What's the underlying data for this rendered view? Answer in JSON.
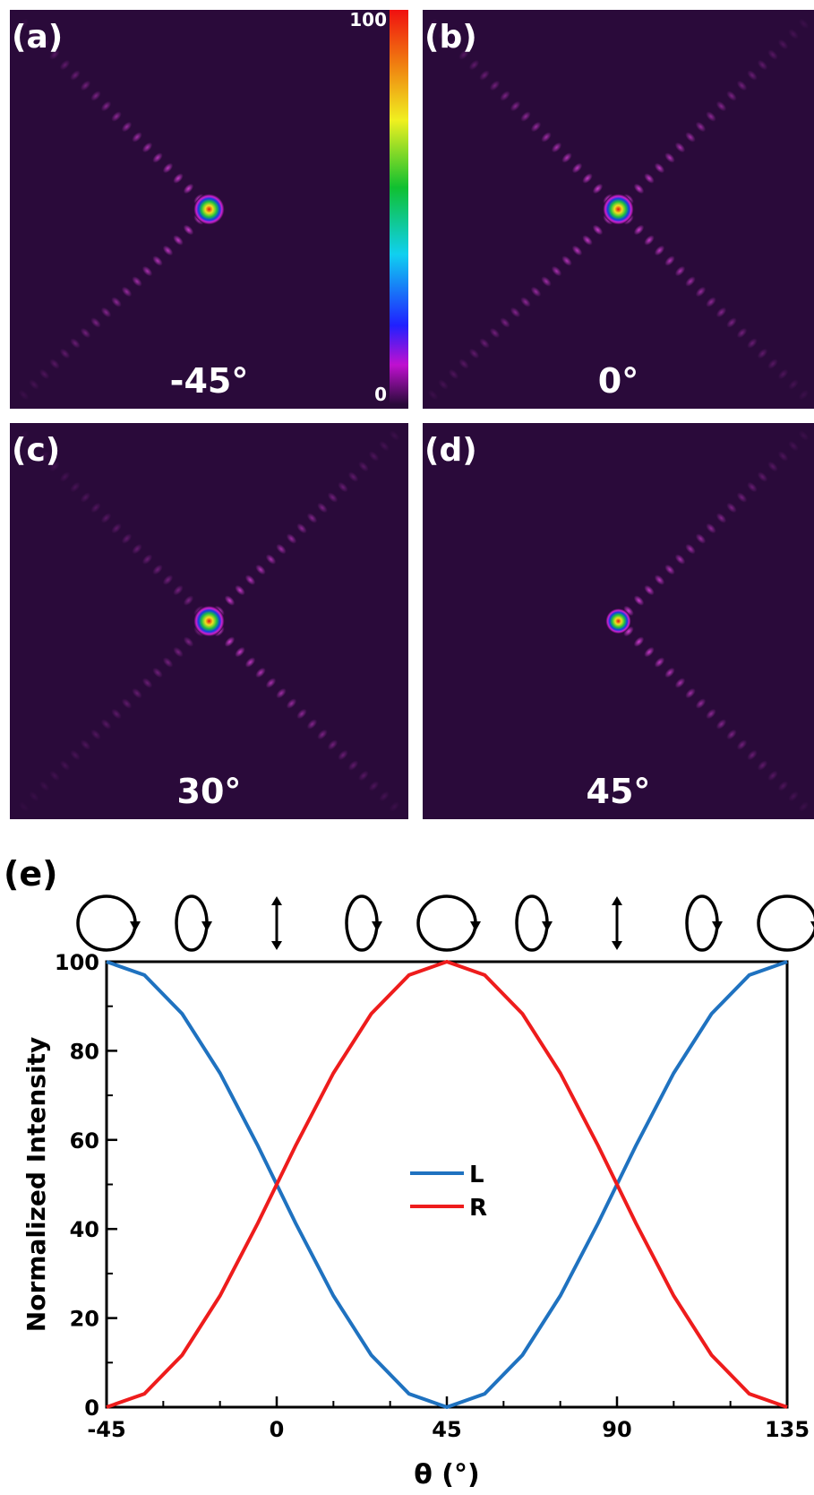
{
  "panels": [
    {
      "label": "(a)",
      "angle": "-45°"
    },
    {
      "label": "(b)",
      "angle": "0°"
    },
    {
      "label": "(c)",
      "angle": "30°"
    },
    {
      "label": "(d)",
      "angle": "45°"
    }
  ],
  "colorbar_ticks": [
    0,
    100
  ],
  "chart_data": {
    "type": "line",
    "label": "(e)",
    "xlabel": "θ (°)",
    "ylabel": "Normalized Intensity",
    "x": [
      -45,
      -35,
      -25,
      -15,
      -5,
      5,
      15,
      25,
      35,
      45,
      55,
      65,
      75,
      85,
      95,
      105,
      115,
      125,
      135
    ],
    "series": [
      {
        "name": "L",
        "color": "#1f72c0",
        "values": [
          100,
          97.0,
          88.3,
          75,
          58.7,
          41.3,
          25,
          11.7,
          3.0,
          0,
          3.0,
          11.7,
          25,
          41.3,
          58.7,
          75,
          88.3,
          97.0,
          100
        ]
      },
      {
        "name": "R",
        "color": "#ee1c1c",
        "values": [
          0,
          3.0,
          11.7,
          25,
          41.3,
          58.7,
          75,
          88.3,
          97.0,
          100,
          97.0,
          88.3,
          75,
          58.7,
          41.3,
          25,
          11.7,
          3.0,
          0
        ]
      }
    ],
    "xlim": [
      -45,
      135
    ],
    "ylim": [
      0,
      100
    ],
    "xticks": [
      -45,
      0,
      45,
      90,
      135
    ],
    "yticks": [
      0,
      20,
      40,
      60,
      80,
      100
    ]
  }
}
